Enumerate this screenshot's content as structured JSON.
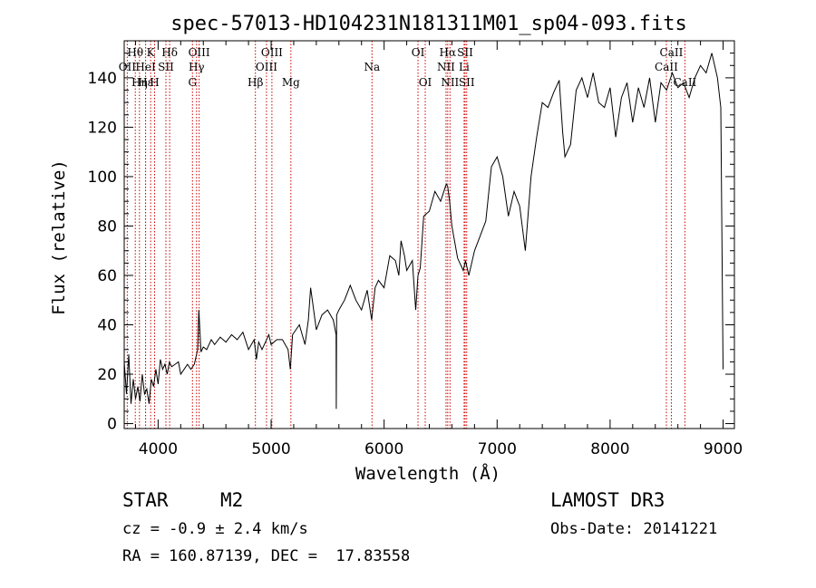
{
  "chart_data": {
    "type": "line",
    "title": "spec-57013-HD104231N181311M01_sp04-093.fits",
    "xlabel": "Wavelength (Å)",
    "ylabel": "Flux (relative)",
    "xlim": [
      3700,
      9100
    ],
    "ylim": [
      -2,
      155
    ],
    "xticks": [
      4000,
      5000,
      6000,
      7000,
      8000,
      9000
    ],
    "yticks": [
      0,
      20,
      40,
      60,
      80,
      100,
      120,
      140
    ],
    "series": [
      {
        "name": "flux",
        "x": [
          3700,
          3720,
          3740,
          3760,
          3780,
          3800,
          3820,
          3840,
          3860,
          3880,
          3900,
          3920,
          3940,
          3960,
          3980,
          4000,
          4020,
          4040,
          4060,
          4080,
          4100,
          4120,
          4150,
          4180,
          4200,
          4230,
          4260,
          4290,
          4320,
          4340,
          4350,
          4360,
          4380,
          4400,
          4430,
          4470,
          4500,
          4550,
          4600,
          4650,
          4700,
          4750,
          4800,
          4850,
          4870,
          4890,
          4920,
          4950,
          4980,
          5000,
          5050,
          5100,
          5150,
          5170,
          5190,
          5220,
          5250,
          5300,
          5330,
          5350,
          5400,
          5450,
          5500,
          5550,
          5575,
          5577,
          5580,
          5600,
          5650,
          5700,
          5750,
          5800,
          5850,
          5890,
          5920,
          5950,
          6000,
          6050,
          6100,
          6130,
          6150,
          6180,
          6200,
          6250,
          6280,
          6300,
          6320,
          6350,
          6400,
          6450,
          6500,
          6550,
          6563,
          6580,
          6600,
          6650,
          6700,
          6720,
          6750,
          6800,
          6850,
          6900,
          6950,
          7000,
          7050,
          7100,
          7150,
          7200,
          7250,
          7300,
          7350,
          7400,
          7450,
          7500,
          7550,
          7580,
          7600,
          7650,
          7700,
          7750,
          7800,
          7850,
          7900,
          7950,
          8000,
          8050,
          8100,
          8150,
          8200,
          8250,
          8300,
          8350,
          8400,
          8450,
          8500,
          8550,
          8600,
          8650,
          8700,
          8750,
          8800,
          8850,
          8900,
          8950,
          8980,
          9000
        ],
        "values": [
          25,
          12,
          28,
          8,
          18,
          10,
          15,
          9,
          20,
          12,
          14,
          8,
          18,
          15,
          22,
          16,
          26,
          22,
          24,
          20,
          25,
          23,
          24,
          25,
          20,
          22,
          24,
          22,
          24,
          28,
          30,
          46,
          29,
          31,
          30,
          34,
          32,
          35,
          33,
          36,
          34,
          37,
          30,
          34,
          26,
          33,
          30,
          33,
          36,
          32,
          34,
          34,
          30,
          22,
          36,
          38,
          40,
          32,
          42,
          55,
          38,
          44,
          46,
          42,
          36,
          6,
          44,
          46,
          50,
          56,
          50,
          46,
          54,
          42,
          55,
          58,
          55,
          68,
          66,
          60,
          74,
          68,
          62,
          66,
          46,
          60,
          63,
          84,
          86,
          94,
          90,
          97,
          96,
          90,
          80,
          67,
          62,
          66,
          60,
          70,
          76,
          82,
          104,
          108,
          100,
          84,
          94,
          88,
          70,
          100,
          116,
          130,
          128,
          134,
          139,
          118,
          108,
          113,
          135,
          140,
          132,
          142,
          130,
          128,
          136,
          116,
          132,
          138,
          122,
          136,
          128,
          140,
          122,
          138,
          135,
          142,
          136,
          138,
          132,
          140,
          145,
          142,
          150,
          140,
          128,
          22
        ]
      }
    ],
    "spectral_lines": [
      {
        "name": "Hθ",
        "x": 3798,
        "row": 1
      },
      {
        "name": "OII",
        "x": 3727,
        "row": 2
      },
      {
        "name": "Hη",
        "x": 3835,
        "row": 3
      },
      {
        "name": "Hε",
        "x": 3889,
        "row": 3
      },
      {
        "name": "HeI",
        "x": 3889,
        "row": 2
      },
      {
        "name": "K",
        "x": 3934,
        "row": 1
      },
      {
        "name": "H",
        "x": 3969,
        "row": 3
      },
      {
        "name": "SII",
        "x": 4069,
        "row": 2
      },
      {
        "name": "Hδ",
        "x": 4102,
        "row": 1
      },
      {
        "name": "G",
        "x": 4304,
        "row": 3
      },
      {
        "name": "Hγ",
        "x": 4340,
        "row": 2
      },
      {
        "name": "OIII",
        "x": 4363,
        "row": 1
      },
      {
        "name": "Hβ",
        "x": 4861,
        "row": 3
      },
      {
        "name": "OIII",
        "x": 4959,
        "row": 2
      },
      {
        "name": "OIII",
        "x": 5007,
        "row": 1
      },
      {
        "name": "Mg",
        "x": 5175,
        "row": 3
      },
      {
        "name": "Na",
        "x": 5893,
        "row": 2
      },
      {
        "name": "OI",
        "x": 6300,
        "row": 1
      },
      {
        "name": "OI",
        "x": 6364,
        "row": 3
      },
      {
        "name": "Hα",
        "x": 6563,
        "row": 1
      },
      {
        "name": "NII",
        "x": 6548,
        "row": 2
      },
      {
        "name": "NII",
        "x": 6583,
        "row": 3
      },
      {
        "name": "SII",
        "x": 6717,
        "row": 1
      },
      {
        "name": "Li",
        "x": 6708,
        "row": 2
      },
      {
        "name": "SII",
        "x": 6731,
        "row": 3
      },
      {
        "name": "CaII",
        "x": 8542,
        "row": 1
      },
      {
        "name": "CaII",
        "x": 8498,
        "row": 2
      },
      {
        "name": "CaII",
        "x": 8662,
        "row": 3
      }
    ]
  },
  "info": {
    "object_class": "STAR",
    "subclass": "M2",
    "survey": "LAMOST DR3",
    "cz": "cz = -0.9 ± 2.4 km/s",
    "obs_date": "Obs-Date: 20141221",
    "coords": "RA = 160.87139, DEC =  17.83558"
  },
  "colors": {
    "line_markers": "#cc0000",
    "spectrum": "#000000"
  }
}
